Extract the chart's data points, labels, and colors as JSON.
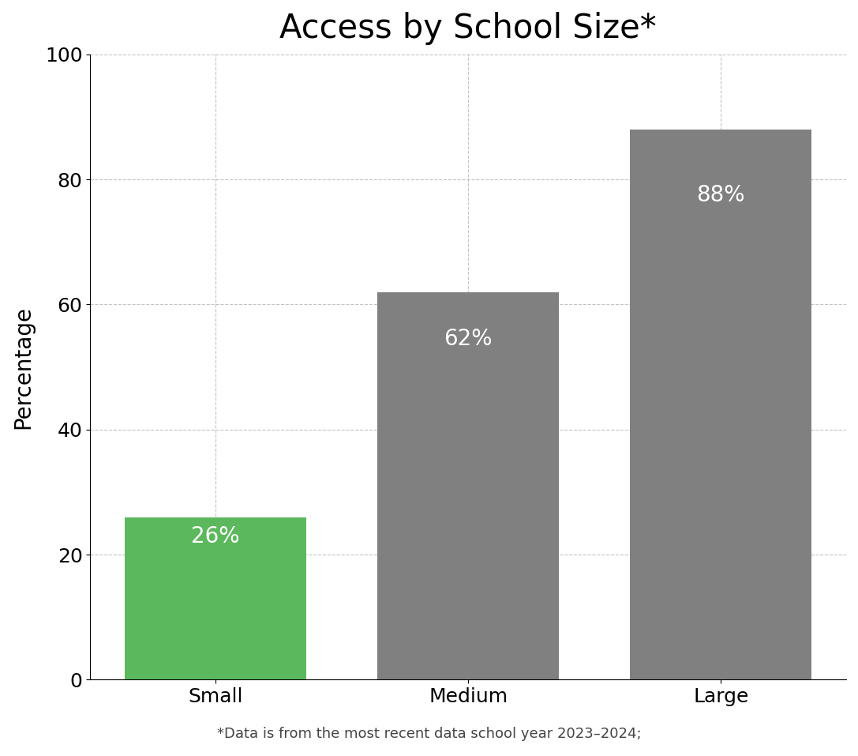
{
  "title": "Access by School Size*",
  "categories": [
    "Small",
    "Medium",
    "Large"
  ],
  "values": [
    26,
    62,
    88
  ],
  "bar_colors": [
    "#5cb85c",
    "#808080",
    "#808080"
  ],
  "bar_labels": [
    "26%",
    "62%",
    "88%"
  ],
  "ylabel": "Percentage",
  "ylim": [
    0,
    100
  ],
  "yticks": [
    0,
    20,
    40,
    60,
    80,
    100
  ],
  "footnote": "*Data is from the most recent data school year 2023–2024;",
  "title_fontsize": 30,
  "label_fontsize": 20,
  "tick_fontsize": 18,
  "bar_label_fontsize": 20,
  "footnote_fontsize": 13,
  "background_color": "#ffffff",
  "grid_color": "#aaaaaa",
  "label_color": "#ffffff",
  "bar_width": 0.72
}
